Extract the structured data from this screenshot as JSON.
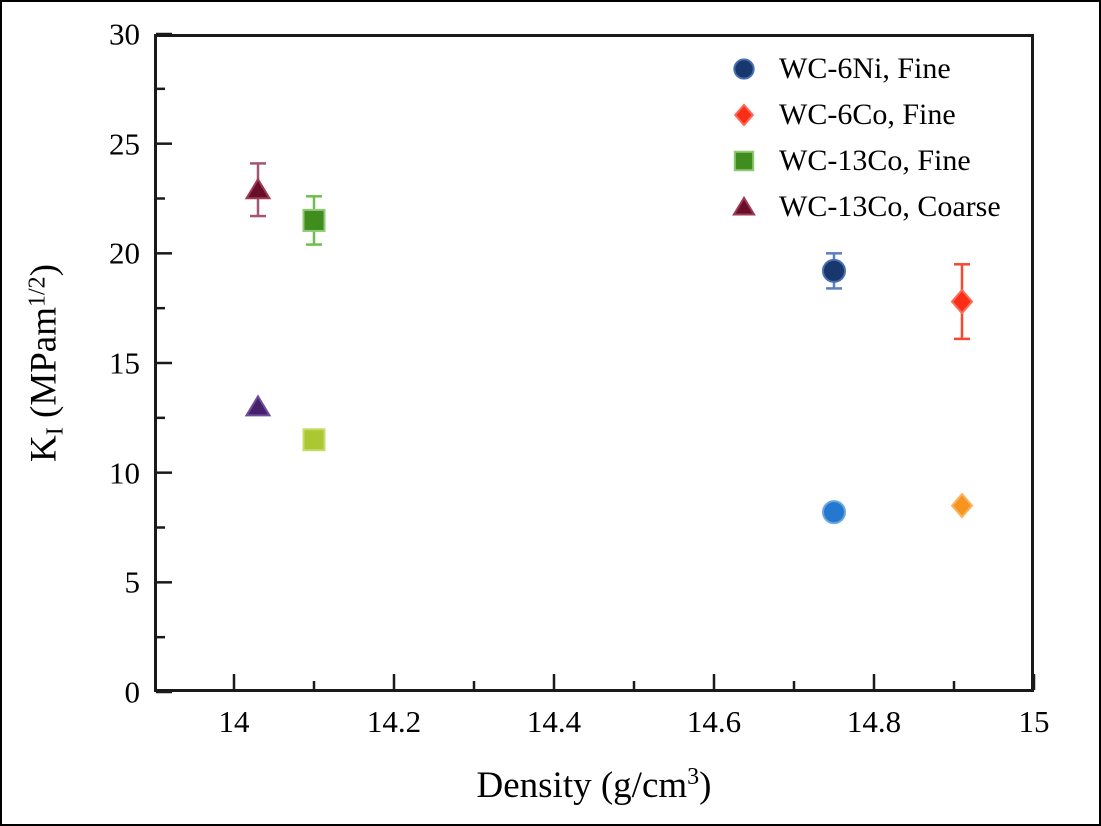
{
  "figure": {
    "background": "#ffffff",
    "frame_color": "#000000",
    "spine_color": "#1a1a1a"
  },
  "axes": {
    "xlabel": {
      "prefix": "Density (g/cm",
      "sup": "3",
      "suffix": ")"
    },
    "ylabel": {
      "base": "K",
      "sub": "I",
      "mid": " (MPam",
      "sup": "1/2",
      "suffix": ")"
    },
    "xlim": [
      13.9,
      15.0
    ],
    "ylim": [
      0,
      30
    ],
    "x_major_ticks": [
      14,
      14.2,
      14.4,
      14.6,
      14.8,
      15
    ],
    "x_major_labels": [
      "14",
      "14.2",
      "14.4",
      "14.6",
      "14.8",
      "15"
    ],
    "x_minor_ticks": [
      14.1,
      14.3,
      14.5,
      14.7,
      14.9
    ],
    "y_major_ticks": [
      0,
      5,
      10,
      15,
      20,
      25,
      30
    ],
    "y_major_labels": [
      "0",
      "5",
      "10",
      "15",
      "20",
      "25",
      "30"
    ],
    "y_minor_ticks": [
      2.5,
      7.5,
      12.5,
      17.5,
      22.5,
      27.5
    ]
  },
  "legend": {
    "items": [
      {
        "label": "WC-6Ni, Fine",
        "marker": "circle",
        "color": "#17376e",
        "edge": "#4a6faf"
      },
      {
        "label": "WC-6Co, Fine",
        "marker": "diamond",
        "color": "#fa2d16",
        "edge": "#fc6a55"
      },
      {
        "label": "WC-13Co, Fine",
        "marker": "square",
        "color": "#3f8d1f",
        "edge": "#8fc973"
      },
      {
        "label": "WC-13Co, Coarse",
        "marker": "triangle",
        "color": "#6a0d29",
        "edge": "#9b3d58"
      }
    ]
  },
  "chart_data": {
    "type": "scatter",
    "title": "",
    "xlabel": "Density (g/cm^3)",
    "ylabel": "K_I (MPam^1/2)",
    "xlim": [
      13.9,
      15.0
    ],
    "ylim": [
      0,
      30
    ],
    "grid": false,
    "legend_position": "upper right",
    "series": [
      {
        "name": "WC-6Ni, Fine",
        "marker": "circle",
        "points": [
          {
            "x": 14.75,
            "y": 19.2,
            "yerr": 0.8,
            "color": "#17376e",
            "edge": "#4a6faf",
            "error_color": "#5b7fc0"
          },
          {
            "x": 14.75,
            "y": 8.2,
            "color": "#2478cf",
            "edge": "#6aa6e0"
          }
        ]
      },
      {
        "name": "WC-6Co, Fine",
        "marker": "diamond",
        "points": [
          {
            "x": 14.91,
            "y": 17.8,
            "yerr": 1.7,
            "color": "#fa2d16",
            "edge": "#fc6a55",
            "error_color": "#fb4631"
          },
          {
            "x": 14.91,
            "y": 8.5,
            "color": "#f79420",
            "edge": "#fab45e"
          }
        ]
      },
      {
        "name": "WC-13Co, Fine",
        "marker": "square",
        "points": [
          {
            "x": 14.1,
            "y": 21.5,
            "yerr": 1.1,
            "color": "#3f8d1f",
            "edge": "#8fc973",
            "error_color": "#6ebf4a"
          },
          {
            "x": 14.1,
            "y": 11.5,
            "color": "#abc832",
            "edge": "#c6dc6a"
          }
        ]
      },
      {
        "name": "WC-13Co, Coarse",
        "marker": "triangle",
        "points": [
          {
            "x": 14.03,
            "y": 22.9,
            "yerr": 1.2,
            "color": "#6a0d29",
            "edge": "#9b3d58",
            "error_color": "#a25672"
          },
          {
            "x": 14.03,
            "y": 13.0,
            "color": "#45216d",
            "edge": "#6f4b99"
          }
        ]
      }
    ]
  }
}
